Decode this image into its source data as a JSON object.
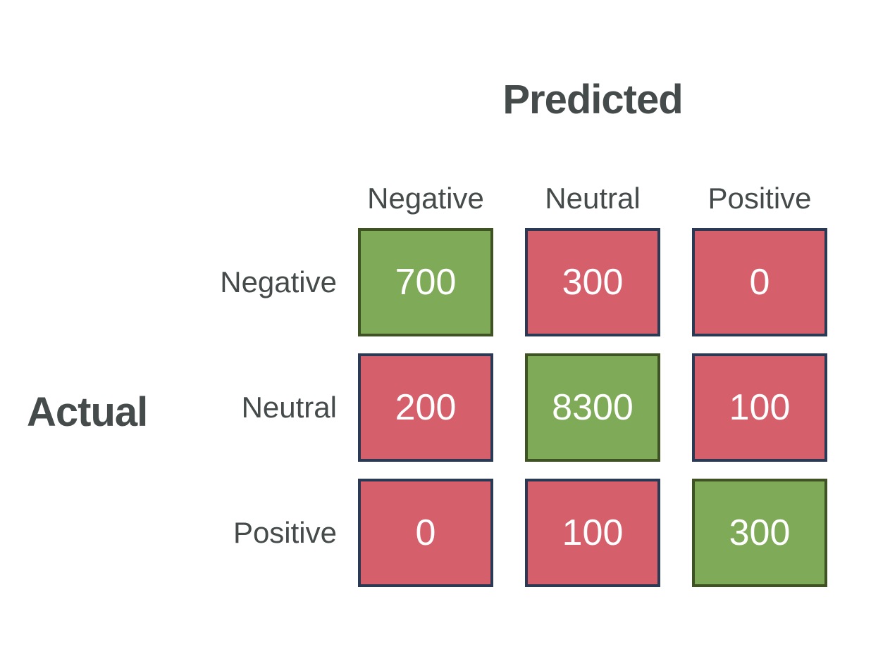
{
  "axis_titles": {
    "predicted": "Predicted",
    "actual": "Actual"
  },
  "columns": [
    "Negative",
    "Neutral",
    "Positive"
  ],
  "rows": [
    "Negative",
    "Neutral",
    "Positive"
  ],
  "cells": [
    {
      "value": "700",
      "variant": "green"
    },
    {
      "value": "300",
      "variant": "red"
    },
    {
      "value": "0",
      "variant": "red"
    },
    {
      "value": "200",
      "variant": "red"
    },
    {
      "value": "8300",
      "variant": "green"
    },
    {
      "value": "100",
      "variant": "red"
    },
    {
      "value": "0",
      "variant": "red"
    },
    {
      "value": "100",
      "variant": "red"
    },
    {
      "value": "300",
      "variant": "green"
    }
  ],
  "colors": {
    "cell_green": "#7fab58",
    "cell_green_border": "#3e5224",
    "cell_red": "#d65f6c",
    "cell_red_border": "#2a3954",
    "label_text": "#454a4a",
    "value_text": "#ffffff"
  },
  "chart_data": {
    "type": "heatmap",
    "title": "",
    "x_axis_label": "Predicted",
    "y_axis_label": "Actual",
    "x_categories": [
      "Negative",
      "Neutral",
      "Positive"
    ],
    "y_categories": [
      "Negative",
      "Neutral",
      "Positive"
    ],
    "matrix": [
      [
        700,
        300,
        0
      ],
      [
        200,
        8300,
        100
      ],
      [
        0,
        100,
        300
      ]
    ],
    "legend_position": "none",
    "grid": false,
    "color_coding": {
      "diagonal_correct": "#7fab58",
      "off_diagonal_error": "#d65f6c"
    }
  }
}
